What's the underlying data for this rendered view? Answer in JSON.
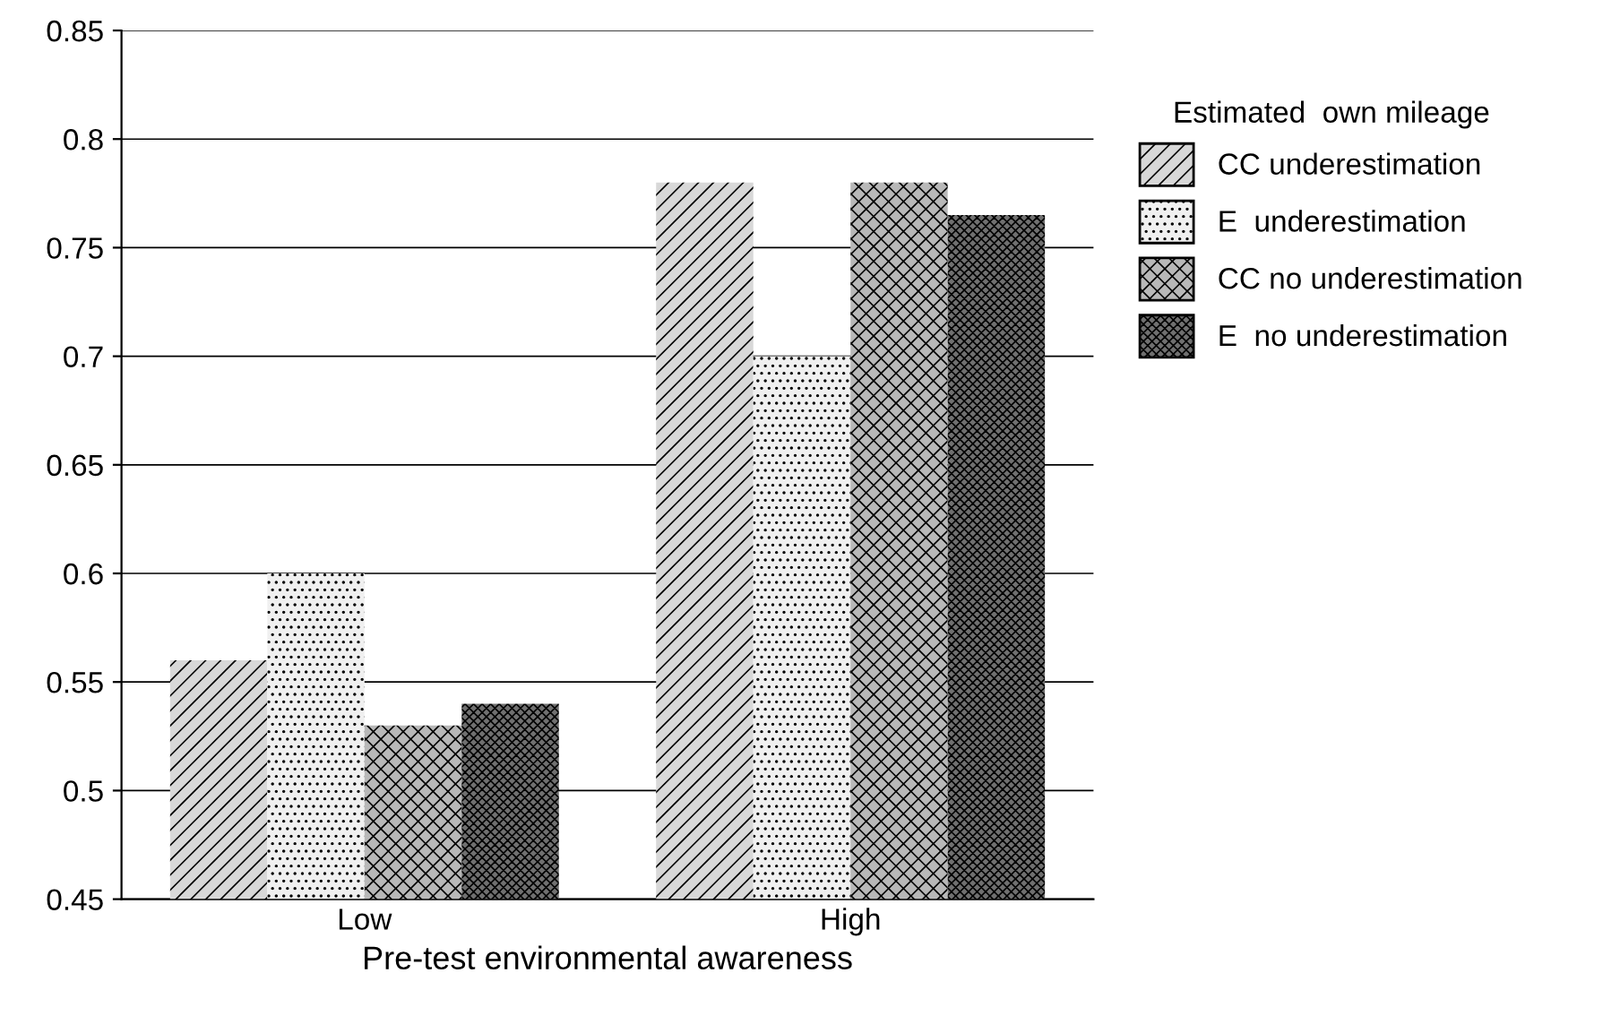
{
  "chart_data": {
    "type": "bar",
    "xlabel": "Pre-test environmental awareness",
    "legend_title": "Estimated  own mileage",
    "categories": [
      "Low",
      "High"
    ],
    "series": [
      {
        "name": "CC underestimation",
        "color": "#d8d8d8",
        "values": [
          0.56,
          0.78
        ]
      },
      {
        "name": "E  underestimation",
        "color": "#f0f0f0",
        "values": [
          0.6,
          0.7
        ]
      },
      {
        "name": "CC no underestimation",
        "color": "#b8b8b8",
        "values": [
          0.53,
          0.78
        ]
      },
      {
        "name": "E  no underestimation",
        "color": "#707070",
        "values": [
          0.54,
          0.765
        ]
      }
    ],
    "ylim": [
      0.45,
      0.85
    ],
    "yticks": [
      0.45,
      0.5,
      0.55,
      0.6,
      0.65,
      0.7,
      0.75,
      0.8,
      0.85
    ],
    "grid": "y",
    "legend": "right"
  }
}
